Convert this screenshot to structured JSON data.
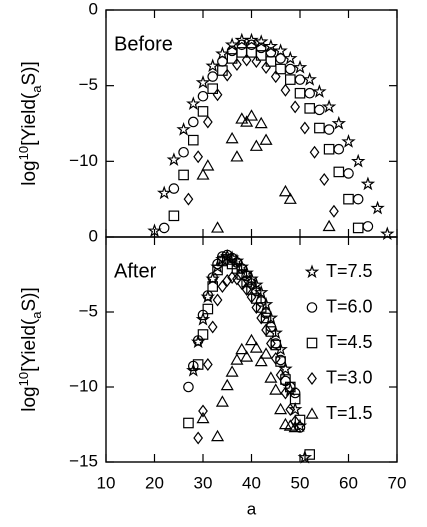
{
  "chart_data": [
    {
      "type": "scatter",
      "label": "Before",
      "ylabel": [
        "log",
        "10",
        "[Yield(",
        "a",
        "S)]"
      ],
      "xlim": [
        10,
        70
      ],
      "xticks": [
        10,
        20,
        30,
        40,
        50,
        60,
        70
      ],
      "ylim": [
        -15,
        0
      ],
      "yticks": [
        {
          "value": -10,
          "label": "−10"
        },
        {
          "value": -5,
          "label": "−5"
        },
        0
      ],
      "series": [
        {
          "marker": "star",
          "color": "#000000",
          "x": [
            20,
            22,
            24,
            26,
            28,
            30,
            32,
            34,
            36,
            38,
            40,
            42,
            44,
            46,
            48,
            50,
            52,
            54,
            56,
            58,
            60,
            62,
            64,
            66,
            68
          ],
          "values": [
            -14.6,
            -12.1,
            -9.9,
            -7.9,
            -6.2,
            -4.8,
            -3.7,
            -2.9,
            -2.3,
            -2.0,
            -2.0,
            -2.1,
            -2.4,
            -2.7,
            -3.2,
            -3.8,
            -4.6,
            -5.4,
            -6.4,
            -7.5,
            -8.7,
            -10.0,
            -11.5,
            -13.1,
            -14.8
          ]
        },
        {
          "marker": "circle",
          "color": "#000000",
          "x": [
            22,
            24,
            26,
            28,
            30,
            32,
            34,
            36,
            38,
            40,
            42,
            44,
            46,
            48,
            50,
            52,
            54,
            56,
            58,
            60,
            62,
            64
          ],
          "values": [
            -14.4,
            -11.8,
            -9.4,
            -7.4,
            -5.7,
            -4.4,
            -3.4,
            -2.7,
            -2.3,
            -2.3,
            -2.5,
            -2.8,
            -3.2,
            -3.9,
            -4.6,
            -5.5,
            -6.6,
            -7.9,
            -9.2,
            -10.8,
            -12.5,
            -14.3
          ]
        },
        {
          "marker": "square",
          "color": "#000000",
          "x": [
            24,
            26,
            28,
            30,
            32,
            34,
            36,
            38,
            40,
            42,
            44,
            46,
            48,
            50,
            52,
            54,
            56,
            58,
            60,
            62
          ],
          "values": [
            -13.6,
            -10.9,
            -8.6,
            -6.7,
            -5.2,
            -4.0,
            -3.2,
            -2.8,
            -2.8,
            -3.0,
            -3.4,
            -3.9,
            -4.6,
            -5.5,
            -6.5,
            -7.8,
            -9.2,
            -10.7,
            -12.5,
            -14.4
          ]
        },
        {
          "marker": "diamond",
          "color": "#000000",
          "x": [
            27,
            29,
            31,
            33,
            35,
            37,
            39,
            41,
            43,
            45,
            47,
            49,
            51,
            53,
            55,
            57
          ],
          "values": [
            -12.5,
            -9.7,
            -7.4,
            -5.6,
            -4.3,
            -3.6,
            -3.3,
            -3.4,
            -3.8,
            -4.4,
            -5.3,
            -6.4,
            -7.8,
            -9.4,
            -11.2,
            -13.3
          ]
        },
        {
          "marker": "triangle",
          "color": "#000000",
          "x": [
            30,
            31,
            33,
            36,
            37,
            38,
            39,
            40,
            41,
            42,
            43,
            47,
            48,
            56
          ],
          "values": [
            -10.9,
            -10.3,
            -14.4,
            -8.5,
            -9.7,
            -7.2,
            -7.4,
            -7.0,
            -9.0,
            -7.5,
            -8.6,
            -12.0,
            -12.5,
            -14.3
          ]
        }
      ]
    },
    {
      "type": "scatter",
      "label": "After",
      "ylabel": [
        "log",
        "10",
        "[Yield(",
        "a",
        "S)]"
      ],
      "xlabel": "a",
      "xlim": [
        10,
        70
      ],
      "xticks": [
        10,
        20,
        30,
        40,
        50,
        60,
        70
      ],
      "ylim": [
        -15,
        0
      ],
      "yticks": [
        {
          "value": -15,
          "label": "−15"
        },
        {
          "value": -10,
          "label": "−10"
        },
        {
          "value": -5,
          "label": "−5"
        },
        0
      ],
      "legend": "right",
      "series": [
        {
          "name": "T=7.5",
          "marker": "star",
          "color": "#000000",
          "x": [
            28,
            29,
            30,
            31,
            32,
            33,
            34,
            35,
            36,
            37,
            38,
            39,
            40,
            41,
            42,
            43,
            44,
            45,
            46,
            47,
            48,
            49,
            50,
            51
          ],
          "values": [
            -8.9,
            -7.0,
            -5.5,
            -4.0,
            -2.8,
            -2.0,
            -1.5,
            -1.3,
            -1.4,
            -1.6,
            -2.0,
            -2.4,
            -2.8,
            -3.2,
            -3.7,
            -4.5,
            -5.4,
            -6.4,
            -7.5,
            -8.8,
            -10.2,
            -11.5,
            -12.6,
            -14.7
          ]
        },
        {
          "name": "T=6.0",
          "marker": "circle",
          "color": "#000000",
          "x": [
            27,
            28,
            29,
            30,
            31,
            32,
            33,
            34,
            35,
            36,
            37,
            38,
            39,
            40,
            41,
            42,
            43,
            44,
            45,
            46,
            47,
            48,
            49,
            50
          ],
          "values": [
            -10.0,
            -8.6,
            -6.9,
            -5.2,
            -3.9,
            -2.7,
            -1.8,
            -1.3,
            -1.2,
            -1.4,
            -1.7,
            -2.1,
            -2.6,
            -3.1,
            -3.6,
            -4.3,
            -5.1,
            -6.0,
            -7.1,
            -8.2,
            -9.6,
            -10.0,
            -10.4,
            -12.7
          ]
        },
        {
          "name": "T=4.5",
          "marker": "square",
          "color": "#000000",
          "x": [
            27,
            29,
            30,
            31,
            32,
            33,
            34,
            35,
            36,
            37,
            38,
            39,
            40,
            41,
            42,
            43,
            44,
            45,
            46,
            47,
            48,
            49,
            50,
            52
          ],
          "values": [
            -12.4,
            -8.5,
            -6.5,
            -4.8,
            -3.3,
            -2.2,
            -1.6,
            -1.5,
            -1.8,
            -2.1,
            -2.5,
            -3.0,
            -3.5,
            -4.1,
            -4.7,
            -5.4,
            -6.3,
            -7.2,
            -8.3,
            -9.5,
            -10.0,
            -10.8,
            -12.2,
            -14.5
          ]
        },
        {
          "name": "T=3.0",
          "marker": "diamond",
          "color": "#000000",
          "x": [
            29,
            30,
            31,
            32,
            33,
            34,
            35,
            36,
            37,
            38,
            39,
            40,
            41,
            42,
            43,
            44,
            45,
            46,
            47,
            48,
            49
          ],
          "values": [
            -13.4,
            -11.6,
            -8.5,
            -6.0,
            -4.2,
            -3.3,
            -2.9,
            -2.7,
            -2.8,
            -3.1,
            -3.5,
            -4.0,
            -4.7,
            -5.4,
            -6.2,
            -7.1,
            -8.1,
            -9.2,
            -10.4,
            -11.5,
            -12.3
          ]
        },
        {
          "name": "T=1.5",
          "marker": "triangle",
          "color": "#000000",
          "x": [
            30,
            33,
            34,
            35,
            36,
            37,
            38,
            39,
            40,
            41,
            42,
            43,
            44,
            45,
            46,
            47,
            48,
            49
          ],
          "values": [
            -12.1,
            -13.3,
            -11.0,
            -9.9,
            -9.0,
            -8.2,
            -7.5,
            -8.0,
            -6.9,
            -7.4,
            -8.3,
            -7.8,
            -9.4,
            -10.2,
            -11.5,
            -12.5,
            -12.6,
            -12.7
          ]
        }
      ]
    }
  ]
}
